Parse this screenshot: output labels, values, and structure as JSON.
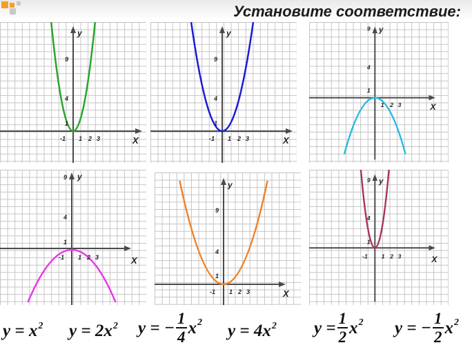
{
  "title": "Установите соответствие:",
  "axis_labels": {
    "x": "X",
    "y": "y"
  },
  "colors": {
    "green": "#2aa52a",
    "blue": "#1a1ad8",
    "cyan": "#2ab8e0",
    "magenta": "#e838e8",
    "orange": "#f08228",
    "maroon": "#a8325a",
    "logo_orange": "#f5a020",
    "logo_gray": "#c8c8c8"
  },
  "graphs": [
    {
      "id": "green",
      "color": "green",
      "ticks_x": [
        "-1",
        "1",
        "2",
        "3"
      ],
      "ticks_y": [
        "4",
        "9",
        "1"
      ]
    },
    {
      "id": "blue",
      "color": "blue",
      "ticks_x": [
        "-1",
        "1",
        "2",
        "3"
      ],
      "ticks_y": [
        "4",
        "9",
        "1"
      ]
    },
    {
      "id": "cyan",
      "color": "cyan",
      "ticks_x": [
        "1",
        "2",
        "3"
      ],
      "ticks_y": [
        "9",
        "4",
        "1"
      ]
    },
    {
      "id": "magenta",
      "color": "magenta",
      "ticks_x": [
        "-1",
        "1",
        "2",
        "3"
      ],
      "ticks_y": [
        "9",
        "4",
        "1"
      ]
    },
    {
      "id": "orange",
      "color": "orange",
      "ticks_x": [
        "-1",
        "1",
        "2",
        "3"
      ],
      "ticks_y": [
        "9",
        "4",
        "1"
      ]
    },
    {
      "id": "maroon",
      "color": "maroon",
      "ticks_x": [
        "-1",
        "1",
        "2",
        "3"
      ],
      "ticks_y": [
        "9",
        "4",
        "1"
      ]
    }
  ],
  "formulas": [
    {
      "lhs": "y = ",
      "coef": "",
      "var": "x",
      "exp": "2"
    },
    {
      "lhs": "y = ",
      "coef": "2",
      "var": "x",
      "exp": "2"
    },
    {
      "lhs": "y = −",
      "num": "1",
      "den": "4",
      "var": "x",
      "exp": "2"
    },
    {
      "lhs": "y = ",
      "coef": "4",
      "var": "x",
      "exp": "2"
    },
    {
      "lhs": "y = ",
      "num": "1",
      "den": "2",
      "var": "x",
      "exp": "2"
    },
    {
      "lhs": "y = −",
      "num": "1",
      "den": "2",
      "var": "x",
      "exp": "2"
    }
  ]
}
